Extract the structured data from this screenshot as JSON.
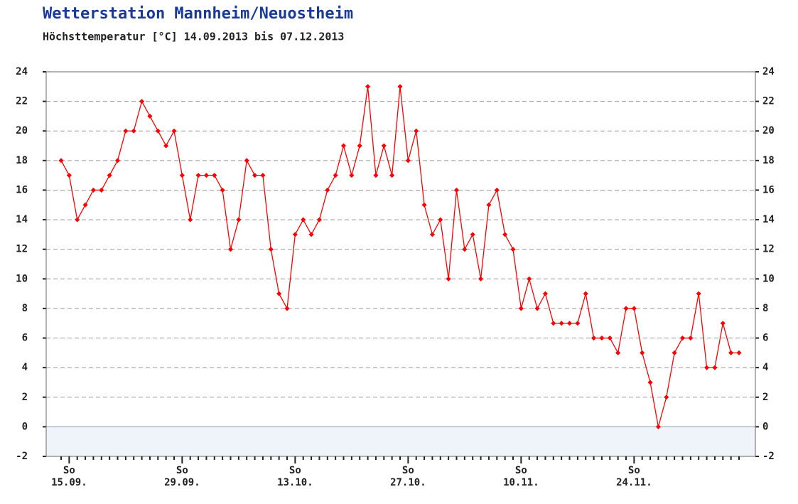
{
  "chart_data": {
    "type": "line",
    "title": "Wetterstation Mannheim/Neuostheim",
    "subtitle": "Höchsttemperatur [°C] 14.09.2013 bis 07.12.2013",
    "categories": [
      null,
      [
        "So",
        "15.09."
      ],
      null,
      null,
      null,
      null,
      null,
      null,
      null,
      null,
      null,
      null,
      null,
      null,
      null,
      [
        "So",
        "29.09."
      ],
      null,
      null,
      null,
      null,
      null,
      null,
      null,
      null,
      null,
      null,
      null,
      null,
      null,
      [
        "So",
        "13.10."
      ],
      null,
      null,
      null,
      null,
      null,
      null,
      null,
      null,
      null,
      null,
      null,
      null,
      null,
      [
        "So",
        "27.10."
      ],
      null,
      null,
      null,
      null,
      null,
      null,
      null,
      null,
      null,
      null,
      null,
      null,
      null,
      [
        "So",
        "10.11."
      ],
      null,
      null,
      null,
      null,
      null,
      null,
      null,
      null,
      null,
      null,
      null,
      null,
      null,
      [
        "So",
        "24.11."
      ],
      null,
      null,
      null,
      null,
      null,
      null,
      null,
      null,
      null,
      null,
      null,
      null,
      null
    ],
    "series": [
      {
        "color": "#ff0000",
        "values": [
          18,
          17,
          14,
          15,
          16,
          16,
          17,
          18,
          20,
          20,
          22,
          21,
          20,
          19,
          20,
          17,
          14,
          17,
          17,
          17,
          16,
          12,
          14,
          18,
          17,
          17,
          12,
          9,
          8,
          13,
          14,
          13,
          14,
          16,
          17,
          19,
          17,
          19,
          23,
          17,
          19,
          17,
          23,
          18,
          20,
          15,
          13,
          14,
          10,
          16,
          12,
          13,
          10,
          15,
          16,
          13,
          12,
          8,
          10,
          8,
          9,
          7,
          7,
          7,
          7,
          9,
          6,
          6,
          6,
          5,
          8,
          8,
          5,
          3,
          0,
          2,
          5,
          6,
          6,
          9,
          4,
          4,
          7,
          5,
          5
        ]
      }
    ],
    "ylim": [
      -2,
      24
    ],
    "yticks": [
      -2,
      0,
      2,
      4,
      6,
      8,
      10,
      12,
      14,
      16,
      18,
      20,
      22,
      24
    ],
    "grid": true
  }
}
